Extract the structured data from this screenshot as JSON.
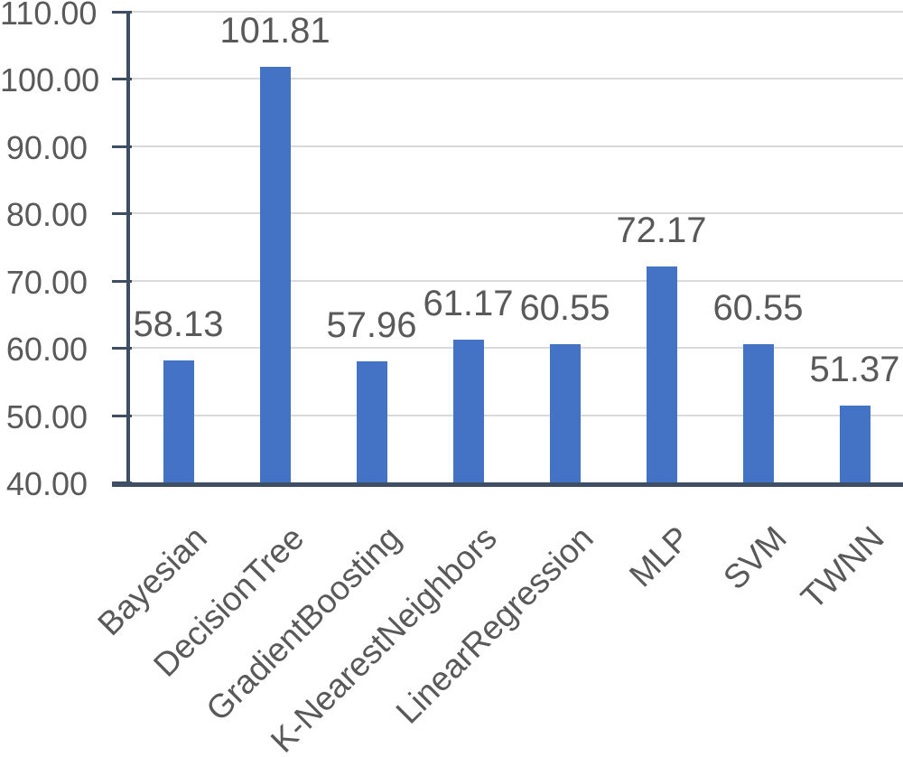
{
  "chart_data": {
    "type": "bar",
    "title": "",
    "xlabel": "",
    "ylabel": "",
    "categories": [
      "Bayesian",
      "DecisionTree",
      "GradientBoosting",
      "K-NearestNeighbors",
      "LinearRegression",
      "MLP",
      "SVM",
      "TWNN"
    ],
    "values": [
      58.13,
      101.81,
      57.96,
      61.17,
      60.55,
      72.17,
      60.55,
      51.37
    ],
    "data_labels": [
      "58.13",
      "101.81",
      "57.96",
      "61.17",
      "60.55",
      "72.17",
      "60.55",
      "51.37"
    ],
    "ylim": [
      40,
      110
    ],
    "ytick_step": 10,
    "ytick_labels": [
      "40.00",
      "50.00",
      "60.00",
      "70.00",
      "80.00",
      "90.00",
      "100.00",
      "110.00"
    ],
    "grid": true,
    "legend": false,
    "x_label_rotation_deg": 45,
    "colors": {
      "bar": "#4472C4",
      "axis": "#3F4F63",
      "gridline": "#D9D9D9",
      "text": "#595959"
    }
  }
}
